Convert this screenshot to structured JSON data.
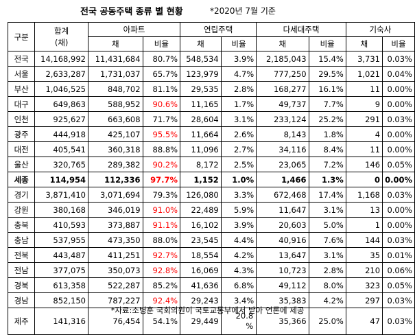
{
  "title": {
    "main": "전국 공동주택 종류 별 현황",
    "sub": "*2020년 7월 기준"
  },
  "table": {
    "header_top": {
      "region": "구분",
      "total_line1": "합계",
      "total_line2": "(채)",
      "groups": [
        "아파트",
        "연립주택",
        "다세대주택",
        "기숙사"
      ]
    },
    "sub_headers": [
      "채",
      "비율",
      "채",
      "비율",
      "채",
      "비율",
      "채",
      "비율"
    ],
    "rows": [
      {
        "region": "전국",
        "total": "14,168,992",
        "apt": "11,431,684",
        "apt_pct": "80.7%",
        "row": "548,534",
        "row_pct": "3.9%",
        "multi": "2,185,043",
        "multi_pct": "15.4%",
        "dorm": "3,731",
        "dorm_pct": "0.03%",
        "red": false,
        "bold": false
      },
      {
        "region": "서울",
        "total": "2,633,287",
        "apt": "1,731,037",
        "apt_pct": "65.7%",
        "row": "123,979",
        "row_pct": "4.7%",
        "multi": "777,250",
        "multi_pct": "29.5%",
        "dorm": "1,021",
        "dorm_pct": "0.04%",
        "red": false,
        "bold": false
      },
      {
        "region": "부산",
        "total": "1,046,525",
        "apt": "848,702",
        "apt_pct": "81.1%",
        "row": "29,535",
        "row_pct": "2.8%",
        "multi": "168,277",
        "multi_pct": "16.1%",
        "dorm": "11",
        "dorm_pct": "0.00%",
        "red": false,
        "bold": false
      },
      {
        "region": "대구",
        "total": "649,863",
        "apt": "588,952",
        "apt_pct": "90.6%",
        "row": "11,165",
        "row_pct": "1.7%",
        "multi": "49,737",
        "multi_pct": "7.7%",
        "dorm": "9",
        "dorm_pct": "0.00%",
        "red": true,
        "bold": false
      },
      {
        "region": "인천",
        "total": "925,627",
        "apt": "663,608",
        "apt_pct": "71.7%",
        "row": "28,604",
        "row_pct": "3.1%",
        "multi": "233,124",
        "multi_pct": "25.2%",
        "dorm": "291",
        "dorm_pct": "0.03%",
        "red": false,
        "bold": false
      },
      {
        "region": "광주",
        "total": "444,918",
        "apt": "425,107",
        "apt_pct": "95.5%",
        "row": "11,664",
        "row_pct": "2.6%",
        "multi": "8,143",
        "multi_pct": "1.8%",
        "dorm": "4",
        "dorm_pct": "0.00%",
        "red": true,
        "bold": false
      },
      {
        "region": "대전",
        "total": "405,541",
        "apt": "360,318",
        "apt_pct": "88.8%",
        "row": "11,096",
        "row_pct": "2.7%",
        "multi": "34,116",
        "multi_pct": "8.4%",
        "dorm": "11",
        "dorm_pct": "0.00%",
        "red": false,
        "bold": false
      },
      {
        "region": "울산",
        "total": "320,765",
        "apt": "289,382",
        "apt_pct": "90.2%",
        "row": "8,172",
        "row_pct": "2.5%",
        "multi": "23,065",
        "multi_pct": "7.2%",
        "dorm": "146",
        "dorm_pct": "0.05%",
        "red": true,
        "bold": false
      },
      {
        "region": "세종",
        "total": "114,954",
        "apt": "112,336",
        "apt_pct": "97.7%",
        "row": "1,152",
        "row_pct": "1.0%",
        "multi": "1,466",
        "multi_pct": "1.3%",
        "dorm": "0",
        "dorm_pct": "0.00%",
        "red": true,
        "bold": true
      },
      {
        "region": "경기",
        "total": "3,871,410",
        "apt": "3,071,694",
        "apt_pct": "79.3%",
        "row": "126,080",
        "row_pct": "3.3%",
        "multi": "672,468",
        "multi_pct": "17.4%",
        "dorm": "1,168",
        "dorm_pct": "0.03%",
        "red": false,
        "bold": false
      },
      {
        "region": "강원",
        "total": "380,168",
        "apt": "346,019",
        "apt_pct": "91.0%",
        "row": "22,489",
        "row_pct": "5.9%",
        "multi": "11,647",
        "multi_pct": "3.1%",
        "dorm": "13",
        "dorm_pct": "0.00%",
        "red": true,
        "bold": false
      },
      {
        "region": "충북",
        "total": "410,593",
        "apt": "373,887",
        "apt_pct": "91.1%",
        "row": "16,102",
        "row_pct": "3.9%",
        "multi": "20,603",
        "multi_pct": "5.0%",
        "dorm": "1",
        "dorm_pct": "0.00%",
        "red": true,
        "bold": false
      },
      {
        "region": "충남",
        "total": "537,955",
        "apt": "473,350",
        "apt_pct": "88.0%",
        "row": "23,545",
        "row_pct": "4.4%",
        "multi": "40,916",
        "multi_pct": "7.6%",
        "dorm": "144",
        "dorm_pct": "0.03%",
        "red": false,
        "bold": false
      },
      {
        "region": "전북",
        "total": "443,487",
        "apt": "411,251",
        "apt_pct": "92.7%",
        "row": "18,554",
        "row_pct": "4.2%",
        "multi": "13,647",
        "multi_pct": "3.1%",
        "dorm": "35",
        "dorm_pct": "0.01%",
        "red": true,
        "bold": false
      },
      {
        "region": "전남",
        "total": "377,075",
        "apt": "350,073",
        "apt_pct": "92.8%",
        "row": "16,069",
        "row_pct": "4.3%",
        "multi": "10,723",
        "multi_pct": "2.8%",
        "dorm": "210",
        "dorm_pct": "0.06%",
        "red": true,
        "bold": false
      },
      {
        "region": "경북",
        "total": "613,358",
        "apt": "522,287",
        "apt_pct": "85.2%",
        "row": "41,636",
        "row_pct": "6.8%",
        "multi": "49,112",
        "multi_pct": "8.0%",
        "dorm": "323",
        "dorm_pct": "0.05%",
        "red": false,
        "bold": false
      },
      {
        "region": "경남",
        "total": "852,150",
        "apt": "787,227",
        "apt_pct": "92.4%",
        "row": "29,243",
        "row_pct": "3.4%",
        "multi": "35,383",
        "multi_pct": "4.2%",
        "dorm": "297",
        "dorm_pct": "0.03%",
        "red": true,
        "bold": false
      },
      {
        "region": "제주",
        "total": "141,316",
        "apt": "76,454",
        "apt_pct": "54.1%",
        "row": "29,449",
        "row_pct": "20.8 %",
        "multi": "35,366",
        "multi_pct": "25.0%",
        "dorm": "47",
        "dorm_pct": "0.03%",
        "red": false,
        "bold": false
      }
    ]
  },
  "source": "*자료:소병훈 국회의원이 국토교통부에서 받아 언론에 제공",
  "colors": {
    "highlight": "#ff0000",
    "border": "#000000",
    "background": "#ffffff"
  }
}
